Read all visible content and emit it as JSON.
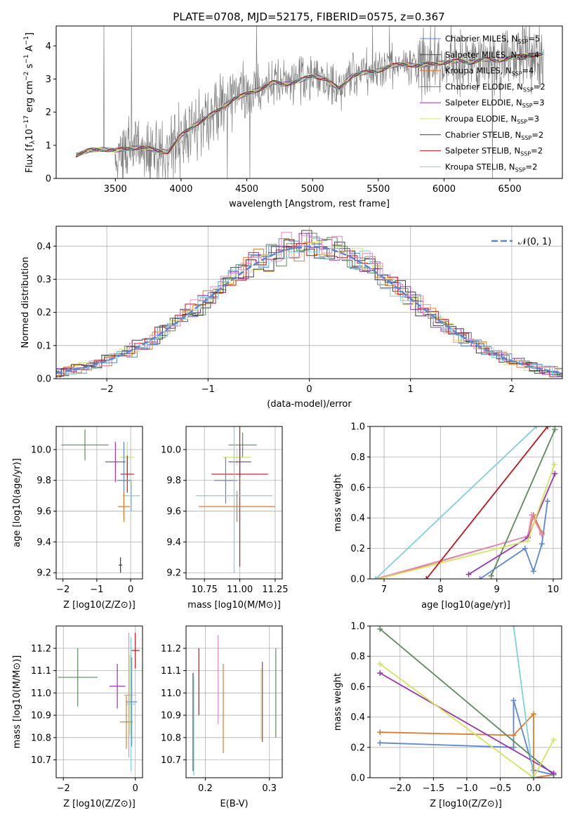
{
  "title": "PLATE=0708, MJD=52175, FIBERID=0575, z=0.367",
  "chart_data": [
    {
      "id": "spectrum",
      "type": "line",
      "xlabel": "wavelength [Angstrom, rest frame]",
      "ylabel": "Flux [f_λ 10^-17 erg cm^-2 s^-1 A^-1]",
      "xlim": [
        3050,
        6900
      ],
      "ylim": [
        0,
        4.6
      ],
      "xticks": [
        3500,
        4000,
        4500,
        5000,
        5500,
        6000,
        6500
      ],
      "yticks": [
        0,
        1,
        2,
        3,
        4
      ],
      "legend_position": "top-right",
      "legend": [
        {
          "label": "Chabrier MILES, N_SSP=5",
          "color": "#5b86d6"
        },
        {
          "label": "Salpeter MILES, N_SSP=4",
          "color": "#4a4a4a"
        },
        {
          "label": "Kroupa MILES, N_SSP=4",
          "color": "#e07b2a"
        },
        {
          "label": "Chabrier ELODIE, N_SSP=2",
          "color": "#5e8a5e"
        },
        {
          "label": "Salpeter ELODIE, N_SSP=3",
          "color": "#9a33b0"
        },
        {
          "label": "Kroupa ELODIE, N_SSP=3",
          "color": "#d4e45c"
        },
        {
          "label": "Chabrier STELIB, N_SSP=2",
          "color": "#3a3a3a"
        },
        {
          "label": "Salpeter STELIB, N_SSP=2",
          "color": "#c0141e"
        },
        {
          "label": "Kroupa STELIB, N_SSP=2",
          "color": "#7fd0d8"
        }
      ],
      "model_x": [
        3200,
        3300,
        3400,
        3500,
        3600,
        3700,
        3800,
        3900,
        4000,
        4100,
        4200,
        4300,
        4400,
        4500,
        4600,
        4700,
        4800,
        4900,
        5000,
        5100,
        5200,
        5300,
        5400,
        5500,
        5600,
        5700,
        5800,
        5900,
        6000,
        6100,
        6200,
        6300,
        6400,
        6500,
        6600,
        6750
      ],
      "model_y": [
        0.7,
        0.85,
        0.88,
        0.85,
        0.9,
        0.95,
        0.85,
        0.8,
        1.3,
        1.6,
        1.85,
        2.1,
        2.4,
        2.55,
        2.7,
        2.9,
        2.85,
        2.95,
        3.1,
        3.0,
        2.7,
        3.1,
        3.2,
        3.25,
        3.4,
        3.45,
        3.4,
        3.45,
        3.5,
        3.55,
        3.5,
        3.6,
        3.55,
        3.65,
        3.7,
        3.75
      ]
    },
    {
      "id": "residual-histogram",
      "type": "bar",
      "xlabel": "(data-model)/error",
      "ylabel": "Normed distribution",
      "xlim": [
        -2.5,
        2.5
      ],
      "ylim": [
        0,
        0.46
      ],
      "xticks": [
        -2,
        -1,
        0,
        1,
        2
      ],
      "yticks": [
        0.0,
        0.1,
        0.2,
        0.3,
        0.4
      ],
      "legend_position": "top-right",
      "gaussian_label": "𝒩(0, 1)",
      "gaussian_color": "#5b86d6"
    },
    {
      "id": "age-vs-Z",
      "type": "scatter",
      "xlabel": "Z [log10(Z/Z⊙)]",
      "ylabel": "age [log10(age/yr)]",
      "xlim": [
        -2.2,
        0.35
      ],
      "ylim": [
        9.16,
        10.15
      ],
      "xticks": [
        -2,
        -1,
        0
      ],
      "yticks": [
        9.2,
        9.4,
        9.6,
        9.8,
        10.0
      ],
      "points": [
        {
          "x": -1.35,
          "xerr": 0.7,
          "y": 10.03,
          "yerr": 0.1,
          "color": "#5e8a5e"
        },
        {
          "x": -0.45,
          "xerr": 0.3,
          "y": 9.92,
          "yerr": 0.13,
          "color": "#9a33b0"
        },
        {
          "x": -0.1,
          "xerr": 0.2,
          "y": 9.95,
          "yerr": 0.1,
          "color": "#d4e45c"
        },
        {
          "x": -0.1,
          "xerr": 0.2,
          "y": 9.84,
          "yerr": 0.12,
          "color": "#c0141e"
        },
        {
          "x": -0.2,
          "xerr": 0.2,
          "y": 9.8,
          "yerr": 0.25,
          "color": "#5b86d6"
        },
        {
          "x": 0.02,
          "xerr": 0.25,
          "y": 9.7,
          "yerr": 0.1,
          "color": "#7fd0d8"
        },
        {
          "x": -0.2,
          "xerr": 0.18,
          "y": 9.63,
          "yerr": 0.1,
          "color": "#e07b2a"
        },
        {
          "x": -0.3,
          "xerr": 0.05,
          "y": 9.25,
          "yerr": 0.05,
          "color": "#3a3a3a"
        }
      ]
    },
    {
      "id": "age-vs-mass",
      "type": "scatter",
      "xlabel": "mass [log10(M/M⊙)]",
      "ylabel": "",
      "xlim": [
        10.62,
        11.3
      ],
      "ylim": [
        9.16,
        10.15
      ],
      "xticks": [
        10.75,
        11.0,
        11.25
      ],
      "yticks": [
        9.2,
        9.4,
        9.6,
        9.8,
        10.0
      ],
      "points": [
        {
          "x": 11.02,
          "xerr": 0.1,
          "y": 10.03,
          "yerr": 0.08,
          "color": "#5e8a5e"
        },
        {
          "x": 10.98,
          "xerr": 0.1,
          "y": 9.95,
          "yerr": 0.05,
          "color": "#d4e45c"
        },
        {
          "x": 11.0,
          "xerr": 0.08,
          "y": 9.92,
          "yerr": 0.1,
          "color": "#9a33b0"
        },
        {
          "x": 11.0,
          "xerr": 0.2,
          "y": 9.84,
          "yerr": 0.6,
          "color": "#c0141e"
        },
        {
          "x": 10.9,
          "xerr": 0.08,
          "y": 9.8,
          "yerr": 0.15,
          "color": "#5b86d6"
        },
        {
          "x": 10.96,
          "xerr": 0.27,
          "y": 9.7,
          "yerr": 0.5,
          "color": "#7fd0d8"
        },
        {
          "x": 10.98,
          "xerr": 0.27,
          "y": 9.63,
          "yerr": 0.1,
          "color": "#e07b2a"
        }
      ]
    },
    {
      "id": "mass-weight-vs-age",
      "type": "line",
      "xlabel": "age [log10(age/yr)]",
      "ylabel": "mass weight",
      "xlim": [
        6.75,
        10.15
      ],
      "ylim": [
        0,
        1.0
      ],
      "xticks": [
        7,
        8,
        9,
        10
      ],
      "yticks": [
        0.0,
        0.2,
        0.4,
        0.6,
        0.8,
        1.0
      ],
      "series": [
        {
          "color": "#5b86d6",
          "x": [
            8.7,
            9.5,
            9.65,
            9.8,
            9.9
          ],
          "y": [
            0.0,
            0.2,
            0.05,
            0.23,
            0.51
          ]
        },
        {
          "color": "#e07b2a",
          "x": [
            6.9,
            9.55,
            9.65,
            9.8
          ],
          "y": [
            0.0,
            0.28,
            0.42,
            0.3
          ]
        },
        {
          "color": "#e58bc0",
          "x": [
            6.85,
            9.55,
            9.62,
            9.8
          ],
          "y": [
            0.0,
            0.28,
            0.42,
            0.29
          ]
        },
        {
          "color": "#5e8a5e",
          "x": [
            8.9,
            10.03
          ],
          "y": [
            0.02,
            0.98
          ]
        },
        {
          "color": "#9a33b0",
          "x": [
            8.5,
            9.55,
            10.03
          ],
          "y": [
            0.03,
            0.27,
            0.69
          ]
        },
        {
          "color": "#d4e45c",
          "x": [
            6.9,
            9.55,
            10.02
          ],
          "y": [
            0.0,
            0.25,
            0.75
          ]
        },
        {
          "color": "#c0141e",
          "x": [
            7.75,
            9.9
          ],
          "y": [
            0.0,
            1.0
          ]
        },
        {
          "color": "#7fd0d8",
          "x": [
            6.85,
            9.7
          ],
          "y": [
            0.0,
            1.0
          ]
        }
      ]
    },
    {
      "id": "mass-vs-Z",
      "type": "scatter",
      "xlabel": "Z [log10(Z/Z⊙)]",
      "ylabel": "mass [log10(M/M⊙)]",
      "xlim": [
        -2.2,
        0.2
      ],
      "ylim": [
        10.62,
        11.3
      ],
      "xticks": [
        -2,
        0
      ],
      "yticks": [
        10.7,
        10.8,
        10.9,
        11.0,
        11.1,
        11.2
      ],
      "points": [
        {
          "x": -1.6,
          "xerr": 0.55,
          "y": 11.07,
          "yerr": 0.13,
          "color": "#5e8a5e"
        },
        {
          "x": -0.5,
          "xerr": 0.22,
          "y": 11.03,
          "yerr": 0.1,
          "color": "#9a33b0"
        },
        {
          "x": -0.15,
          "xerr": 0.18,
          "y": 10.99,
          "yerr": 0.18,
          "color": "#d4e45c"
        },
        {
          "x": 0.0,
          "xerr": 0.12,
          "y": 11.19,
          "yerr": 0.08,
          "color": "#c0141e"
        },
        {
          "x": -0.1,
          "xerr": 0.15,
          "y": 10.96,
          "yerr": 0.2,
          "color": "#5b86d6"
        },
        {
          "x": -0.12,
          "xerr": 0.12,
          "y": 10.95,
          "yerr": 0.3,
          "color": "#7fd0d8"
        },
        {
          "x": -0.25,
          "xerr": 0.18,
          "y": 10.87,
          "yerr": 0.12,
          "color": "#e07b2a"
        },
        {
          "x": -0.18,
          "xerr": 0.1,
          "y": 10.99,
          "yerr": 0.28,
          "color": "#e58bc0"
        }
      ]
    },
    {
      "id": "mass-vs-ebv",
      "type": "scatter",
      "xlabel": "E(B-V)",
      "ylabel": "",
      "xlim": [
        0.17,
        0.32
      ],
      "ylim": [
        10.62,
        11.3
      ],
      "xticks": [
        0.2,
        0.3
      ],
      "yticks": [
        10.7,
        10.8,
        10.9,
        11.0,
        11.1,
        11.2
      ],
      "points": [
        {
          "x": 0.181,
          "y": 10.87,
          "yerr": 0.22,
          "color": "#3a3a3a"
        },
        {
          "x": 0.182,
          "y": 10.85,
          "yerr": 0.22,
          "color": "#7fd0d8"
        },
        {
          "x": 0.19,
          "y": 11.05,
          "yerr": 0.15,
          "color": "#c0141e"
        },
        {
          "x": 0.22,
          "y": 11.06,
          "yerr": 0.2,
          "color": "#e58bc0"
        },
        {
          "x": 0.228,
          "y": 10.93,
          "yerr": 0.2,
          "color": "#e07b2a"
        },
        {
          "x": 0.287,
          "y": 10.95,
          "yerr": 0.16,
          "color": "#d4e45c"
        },
        {
          "x": 0.289,
          "y": 10.96,
          "yerr": 0.18,
          "color": "#9a33b0"
        },
        {
          "x": 0.31,
          "y": 11.0,
          "yerr": 0.2,
          "color": "#5e8a5e"
        }
      ]
    },
    {
      "id": "mass-weight-vs-Z",
      "type": "line",
      "xlabel": "Z [log10(Z/Z⊙)]",
      "ylabel": "mass weight",
      "xlim": [
        -2.45,
        0.42
      ],
      "ylim": [
        0,
        1.0
      ],
      "xticks": [
        -2.0,
        -1.5,
        -1.0,
        -0.5,
        0.0
      ],
      "yticks": [
        0.0,
        0.2,
        0.4,
        0.6,
        0.8,
        1.0
      ],
      "series": [
        {
          "color": "#5b86d6",
          "x": [
            -2.3,
            -0.3,
            -0.3,
            0.0,
            0.3
          ],
          "y": [
            0.23,
            0.2,
            0.51,
            0.05,
            0.02
          ]
        },
        {
          "color": "#e07b2a",
          "x": [
            -2.3,
            -0.3,
            0.0,
            0.0,
            0.3
          ],
          "y": [
            0.3,
            0.28,
            0.42,
            0.0,
            0.02
          ]
        },
        {
          "color": "#5e8a5e",
          "x": [
            -2.3,
            0.3
          ],
          "y": [
            0.98,
            0.02
          ]
        },
        {
          "color": "#9a33b0",
          "x": [
            -2.3,
            0.3
          ],
          "y": [
            0.69,
            0.03
          ]
        },
        {
          "color": "#d4e45c",
          "x": [
            -2.3,
            0.0,
            0.3
          ],
          "y": [
            0.75,
            0.0,
            0.25
          ]
        },
        {
          "color": "#7fd0d8",
          "x": [
            -0.3,
            0.0
          ],
          "y": [
            1.0,
            0.0
          ]
        }
      ]
    }
  ]
}
